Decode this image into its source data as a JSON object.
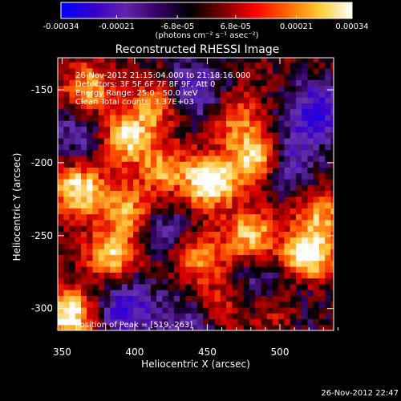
{
  "colorbar": {
    "ticks": [
      "-0.00034",
      "-0.00021",
      "-6.8e-05",
      "6.8e-05",
      "0.00021",
      "0.00034"
    ],
    "tick_values": [
      -0.00034,
      -0.00021,
      -6.8e-05,
      6.8e-05,
      0.00021,
      0.00034
    ],
    "range": [
      -0.00034,
      0.00034
    ],
    "units_label": "(photons cm⁻² s⁻¹ asec⁻²)",
    "colors": [
      "#0000ff",
      "#3300cc",
      "#6622aa",
      "#330066",
      "#000000",
      "#770000",
      "#ff0000",
      "#ff6600",
      "#ffcc33",
      "#ffffff"
    ]
  },
  "chart_data": {
    "type": "heatmap",
    "title": "Reconstructed RHESSI Image",
    "xlabel": "Heliocentric X (arcsec)",
    "ylabel": "Heliocentric Y (arcsec)",
    "xlim": [
      347,
      537
    ],
    "ylim": [
      -315,
      -128
    ],
    "xticks": [
      350,
      400,
      450,
      500
    ],
    "yticks": [
      -300,
      -250,
      -200,
      -150
    ],
    "annotations": [
      "26-Nov-2012 21:15:04.000 to 21:18:16.000",
      "Detectors: 3F 5F 6F 7F 8F 9F, Att 0",
      "Energy Range: 25.0 - 50.0 keV",
      "Clean     Total counts: 3.37E+03"
    ],
    "peak_label": "Position of Peak = [519,-263]",
    "peak": [
      519,
      -263
    ],
    "hotspots": [
      {
        "x": 452,
        "y": -213,
        "intensity": 1.0
      },
      {
        "x": 519,
        "y": -263,
        "intensity": 1.0
      },
      {
        "x": 362,
        "y": -218,
        "intensity": 0.85
      },
      {
        "x": 395,
        "y": -182,
        "intensity": 0.8
      },
      {
        "x": 355,
        "y": -305,
        "intensity": 0.9
      },
      {
        "x": 483,
        "y": -197,
        "intensity": 0.85
      },
      {
        "x": 480,
        "y": -250,
        "intensity": 0.7
      },
      {
        "x": 445,
        "y": -265,
        "intensity": 0.55
      },
      {
        "x": 385,
        "y": -262,
        "intensity": 0.75
      },
      {
        "x": 368,
        "y": -150,
        "intensity": 0.6
      },
      {
        "x": 395,
        "y": -232,
        "intensity": 0.6
      },
      {
        "x": 420,
        "y": -205,
        "intensity": 0.55
      },
      {
        "x": 528,
        "y": -235,
        "intensity": 0.55
      },
      {
        "x": 455,
        "y": -300,
        "intensity": 0.4
      },
      {
        "x": 500,
        "y": -300,
        "intensity": 0.5
      },
      {
        "x": 470,
        "y": -170,
        "intensity": 0.45
      },
      {
        "x": 415,
        "y": -160,
        "intensity": 0.55
      }
    ],
    "coldspots": [
      {
        "x": 525,
        "y": -165,
        "intensity": 0.9
      },
      {
        "x": 440,
        "y": -150,
        "intensity": 0.7
      },
      {
        "x": 505,
        "y": -200,
        "intensity": 0.6
      },
      {
        "x": 395,
        "y": -300,
        "intensity": 0.8
      },
      {
        "x": 440,
        "y": -310,
        "intensity": 0.6
      },
      {
        "x": 420,
        "y": -245,
        "intensity": 0.4
      },
      {
        "x": 490,
        "y": -280,
        "intensity": 0.4
      },
      {
        "x": 360,
        "y": -180,
        "intensity": 0.5
      },
      {
        "x": 510,
        "y": -300,
        "intensity": 0.4
      }
    ]
  },
  "footer_timestamp": "26-Nov-2012 22:47"
}
